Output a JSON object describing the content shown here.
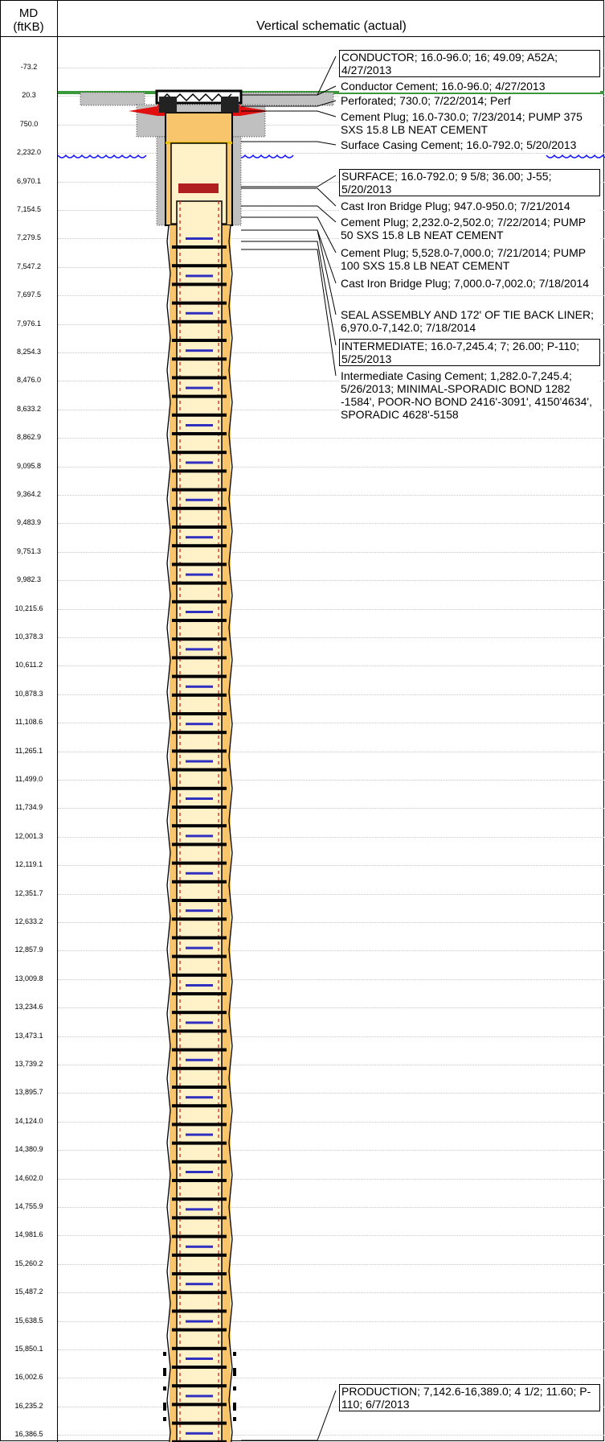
{
  "header": {
    "md_label": "MD\n(ftKB)",
    "md_line1": "MD",
    "md_line2": "(ftKB)",
    "title": "Vertical schematic (actual)"
  },
  "depths": [
    "-73.2",
    "20.3",
    "750.0",
    "2,232.0",
    "6,970.1",
    "7,154.5",
    "7,279.5",
    "7,547.2",
    "7,697.5",
    "7,976.1",
    "8,254.3",
    "8,476.0",
    "8,633.2",
    "8,862.9",
    "9,095.8",
    "9,364.2",
    "9,483.9",
    "9,751.3",
    "9,982.3",
    "10,215.6",
    "10,378.3",
    "10,611.2",
    "10,878.3",
    "11,108.6",
    "11,265.1",
    "11,499.0",
    "11,734.9",
    "12,001.3",
    "12,119.1",
    "12,351.7",
    "12,633.2",
    "12,857.9",
    "13,009.8",
    "13,234.6",
    "13,473.1",
    "13,739.2",
    "13,895.7",
    "14,124.0",
    "14,380.9",
    "14,602.0",
    "14,755.9",
    "14,981.6",
    "15,260.2",
    "15,487.2",
    "15,638.5",
    "15,850.1",
    "16,002.6",
    "16,235.2",
    "16,386.5"
  ],
  "annotations": [
    {
      "text": "CONDUCTOR; 16.0-96.0; 16; 49.09; A52A; 4/27/2013",
      "boxed": true
    },
    {
      "text": "Conductor Cement; 16.0-96.0; 4/27/2013",
      "boxed": false
    },
    {
      "text": "Perforated; 730.0; 7/22/2014; Perf",
      "boxed": false
    },
    {
      "text": "Cement Plug; 16.0-730.0; 7/23/2014; PUMP 375 SXS 15.8 LB NEAT CEMENT",
      "boxed": false
    },
    {
      "text": "Surface Casing Cement; 16.0-792.0; 5/20/2013",
      "boxed": false
    },
    {
      "text": "SURFACE; 16.0-792.0; 9 5/8; 36.00; J-55; 5/20/2013",
      "boxed": true
    },
    {
      "text": "Cast Iron Bridge Plug; 947.0-950.0; 7/21/2014",
      "boxed": false
    },
    {
      "text": "Cement Plug; 2,232.0-2,502.0; 7/22/2014; PUMP 50 SXS 15.8 LB NEAT CEMENT",
      "boxed": false
    },
    {
      "text": "Cement Plug; 5,528.0-7,000.0; 7/21/2014; PUMP 100 SXS 15.8 LB NEAT CEMENT",
      "boxed": false
    },
    {
      "text": "Cast Iron Bridge Plug; 7,000.0-7,002.0; 7/18/2014",
      "boxed": false
    },
    {
      "text": "SEAL ASSEMBLY AND 172' OF TIE BACK LINER; 6,970.0-7,142.0; 7/18/2014",
      "boxed": false
    },
    {
      "text": "INTERMEDIATE; 16.0-7,245.4; 7; 26.00; P-110; 5/25/2013",
      "boxed": true
    },
    {
      "text": "Intermediate Casing Cement; 1,282.0-7,245.4; 5/26/2013; MINIMAL-SPORADIC BOND 1282 -1584', POOR-NO BOND 2416'-3091', 4150'4634', SPORADIC 4628'-5158",
      "boxed": false
    },
    {
      "text": "PRODUCTION; 7,142.6-16,389.0; 4 1/2; 11.60; P-110; 6/7/2013",
      "boxed": true
    }
  ],
  "colors": {
    "casing_fill": "#f9c56c",
    "tubing_fill": "#fff2c8",
    "ground": "#3a9a3a",
    "water": "#1a1aff",
    "cement": "#c0c0c0",
    "plug_red": "#e01010",
    "bridge_plug": "#b02020",
    "joint": "#000000",
    "coupling_blue": "#3030c0"
  }
}
